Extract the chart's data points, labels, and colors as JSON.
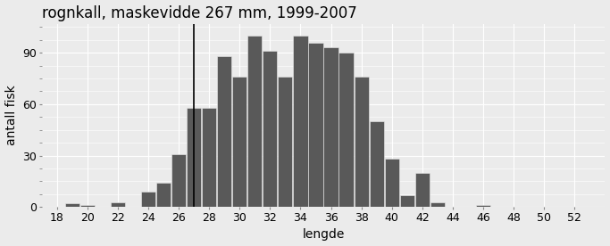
{
  "title": "rognkall, maskevidde 267 mm, 1999-2007",
  "xlabel": "lengde",
  "ylabel": "antall fisk",
  "bar_color": "#595959",
  "vline_x": 27,
  "vline_color": "black",
  "xlim": [
    17,
    54
  ],
  "ylim": [
    0,
    107
  ],
  "xticks": [
    18,
    20,
    22,
    24,
    26,
    28,
    30,
    32,
    34,
    36,
    38,
    40,
    42,
    44,
    46,
    48,
    50,
    52
  ],
  "yticks": [
    0,
    30,
    60,
    90
  ],
  "bins_centers": [
    19,
    20,
    21,
    22,
    23,
    24,
    25,
    26,
    27,
    28,
    29,
    30,
    31,
    32,
    33,
    34,
    35,
    36,
    37,
    38,
    39,
    40,
    41,
    42,
    43,
    46
  ],
  "heights": [
    2,
    1,
    0,
    3,
    0,
    9,
    14,
    31,
    58,
    58,
    88,
    76,
    100,
    91,
    76,
    100,
    96,
    93,
    90,
    76,
    50,
    28,
    7,
    20,
    3,
    1
  ],
  "background_color": "#ebebeb",
  "panel_background": "#ebebeb",
  "grid_color": "#ffffff",
  "title_fontsize": 12,
  "label_fontsize": 10,
  "tick_fontsize": 9
}
